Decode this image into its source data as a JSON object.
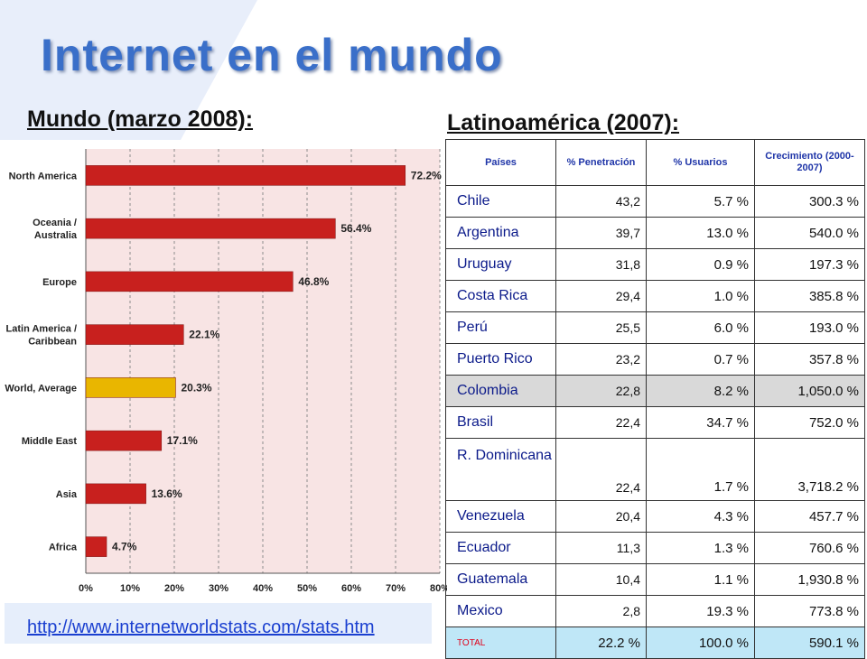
{
  "title": "Internet en el mundo",
  "world": {
    "subtitle": "Mundo (marzo 2008):",
    "url": "http://www.internetworldstats.com/stats.htm"
  },
  "latam": {
    "subtitle": "Latinoamérica (2007):",
    "headers": [
      "Países",
      "% Penetración",
      "% Usuarios",
      "Crecimiento (2000-2007)"
    ],
    "rows": [
      {
        "country": "Chile",
        "pen": "43,2",
        "users": "5.7 %",
        "growth": "300.3 %"
      },
      {
        "country": "Argentina",
        "pen": "39,7",
        "users": "13.0 %",
        "growth": "540.0 %"
      },
      {
        "country": "Uruguay",
        "pen": "31,8",
        "users": "0.9 %",
        "growth": "197.3 %"
      },
      {
        "country": "Costa Rica",
        "pen": "29,4",
        "users": "1.0 %",
        "growth": "385.8 %"
      },
      {
        "country": "Perú",
        "pen": "25,5",
        "users": "6.0 %",
        "growth": "193.0 %"
      },
      {
        "country": "Puerto Rico",
        "pen": "23,2",
        "users": "0.7 %",
        "growth": "357.8 %"
      },
      {
        "country": "Colombia",
        "pen": "22,8",
        "users": "8.2 %",
        "growth": "1,050.0 %"
      },
      {
        "country": "Brasil",
        "pen": "22,4",
        "users": "34.7 %",
        "growth": "752.0 %"
      },
      {
        "country": "R. Dominicana",
        "pen": "22,4",
        "users": "1.7 %",
        "growth": "3,718.2 %"
      },
      {
        "country": "Venezuela",
        "pen": "20,4",
        "users": "4.3 %",
        "growth": "457.7 %"
      },
      {
        "country": "Ecuador",
        "pen": "11,3",
        "users": "1.3 %",
        "growth": "760.6 %"
      },
      {
        "country": "Guatemala",
        "pen": "10,4",
        "users": "1.1 %",
        "growth": "1,930.8 %"
      },
      {
        "country": "Mexico",
        "pen": "2,8",
        "users": "19.3 %",
        "growth": "773.8 %"
      }
    ],
    "total": {
      "country": "TOTAL",
      "pen": "22.2 %",
      "users": "100.0 %",
      "growth": "590.1 %"
    }
  },
  "chart_data": {
    "type": "bar",
    "orientation": "horizontal",
    "categories": [
      "North America",
      "Oceania / Australia",
      "Europe",
      "Latin America / Caribbean",
      "World, Average",
      "Middle East",
      "Asia",
      "Africa"
    ],
    "values": [
      72.2,
      56.4,
      46.8,
      22.1,
      20.3,
      17.1,
      13.6,
      4.7
    ],
    "value_labels": [
      "72.2%",
      "56.4%",
      "46.8%",
      "22.1%",
      "20.3%",
      "17.1%",
      "13.6%",
      "4.7%"
    ],
    "highlight": "World, Average",
    "xlim": [
      0,
      80
    ],
    "xticks": [
      "0%",
      "10%",
      "20%",
      "30%",
      "40%",
      "50%",
      "60%",
      "70%",
      "80%"
    ],
    "grid": true,
    "colors": {
      "bar": "#c8201e",
      "highlight": "#e9b600",
      "plot_bg": "#f8e4e4",
      "grid": "#8c8c8c"
    }
  },
  "colors": {
    "title": "#3a6fc9",
    "header_text": "#1f35a8",
    "total_bg": "#bfe7f7",
    "highlight_row": "#d9d9d9",
    "total_label": "#e0001a"
  }
}
